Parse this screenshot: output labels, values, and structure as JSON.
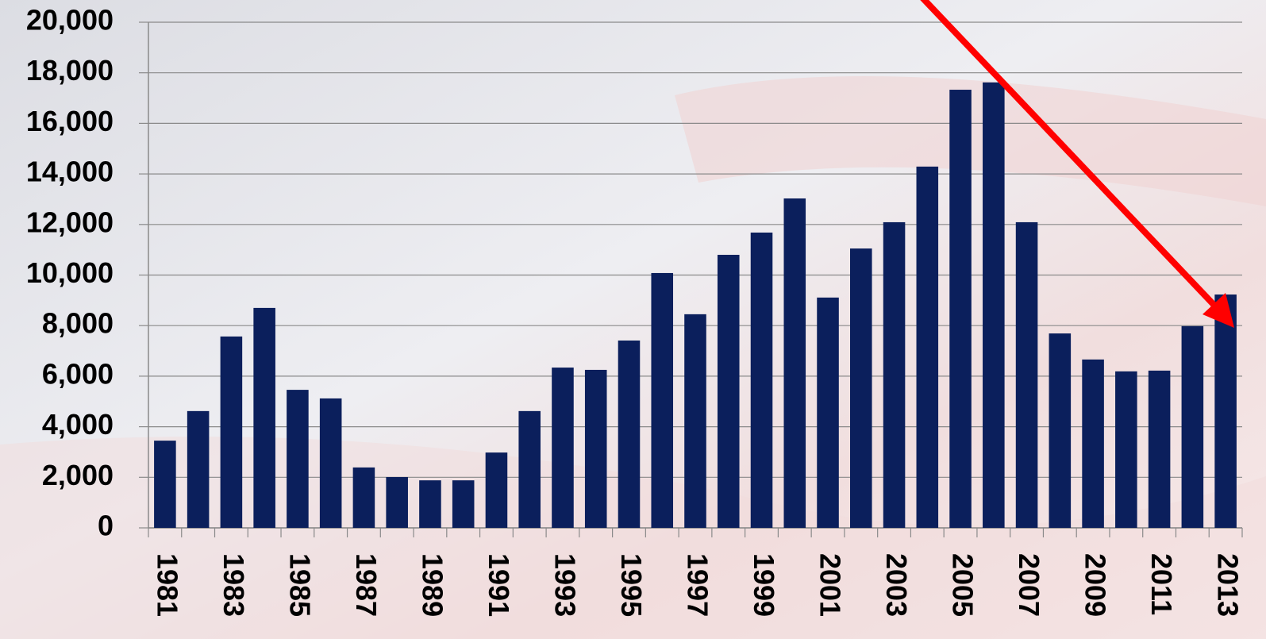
{
  "chart_data": {
    "type": "bar",
    "categories": [
      "1981",
      null,
      "1983",
      null,
      "1985",
      null,
      "1987",
      null,
      "1989",
      null,
      "1991",
      null,
      "1993",
      null,
      "1995",
      null,
      "1997",
      null,
      "1999",
      null,
      "2001",
      null,
      "2003",
      null,
      "2005",
      null,
      "2007",
      null,
      "2009",
      null,
      "2011",
      null,
      "2013"
    ],
    "values": [
      3450,
      4620,
      7570,
      8700,
      5460,
      5120,
      2390,
      2010,
      1880,
      1880,
      2980,
      4620,
      6340,
      6250,
      7410,
      10080,
      8450,
      10800,
      11680,
      13030,
      9110,
      11050,
      12090,
      14290,
      17330,
      17620,
      12090,
      7690,
      6660,
      6190,
      6220,
      7980,
      9230
    ],
    "color": "#0b1f5c",
    "ylim": [
      0,
      20000
    ],
    "yticks": [
      0,
      {
        "value": 2000,
        "label": "2,000"
      },
      {
        "value": 4000,
        "label": "4,000"
      },
      {
        "value": 6000,
        "label": "6,000"
      },
      {
        "value": 8000,
        "label": "8,000"
      },
      {
        "value": 10000,
        "label": "10,000"
      },
      {
        "value": 12000,
        "label": "12,000"
      },
      {
        "value": 14000,
        "label": "14,000"
      },
      {
        "value": 16000,
        "label": "16,000"
      },
      {
        "value": 18000,
        "label": "18,000"
      },
      {
        "value": 20000,
        "label": "20,000"
      }
    ],
    "grid": true
  }
}
